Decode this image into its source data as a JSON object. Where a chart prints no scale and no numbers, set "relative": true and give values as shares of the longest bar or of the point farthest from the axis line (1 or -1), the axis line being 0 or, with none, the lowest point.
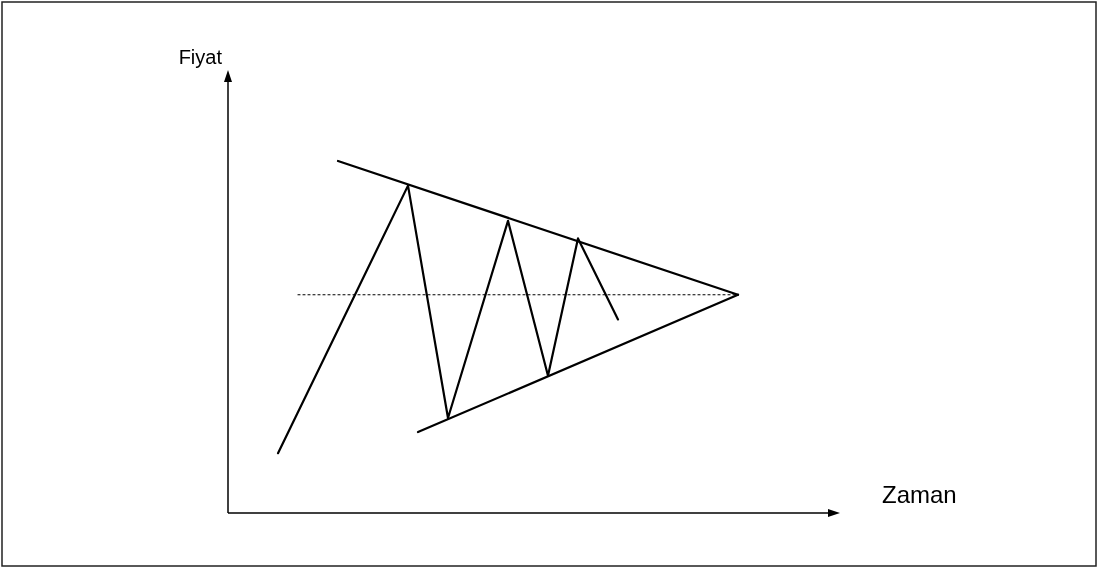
{
  "chart_data": {
    "type": "line",
    "relative": true,
    "ylabel": "Fiyat",
    "xlabel": "Zaman",
    "categories": [
      null,
      null,
      null,
      null,
      null,
      null,
      null,
      null,
      null,
      null,
      null,
      null,
      null,
      null,
      null,
      null,
      null,
      null,
      null,
      null,
      null,
      null,
      null,
      null,
      null,
      null,
      null,
      null,
      null,
      null,
      null,
      null,
      null,
      null,
      null,
      null,
      null,
      null,
      null,
      null,
      null,
      null,
      null,
      null,
      null,
      null,
      null,
      null,
      null,
      null,
      null,
      null,
      null,
      null,
      null,
      null,
      null,
      null,
      null,
      null,
      null
    ],
    "series": [
      {
        "color": "#000000",
        "line_style": "solid",
        "values": [
          null,
          null,
          null,
          null,
          null,
          0.17,
          null,
          null,
          null,
          null,
          null,
          null,
          null,
          null,
          null,
          null,
          null,
          null,
          0.93,
          null,
          null,
          null,
          0.27,
          null,
          null,
          null,
          null,
          null,
          0.83,
          null,
          null,
          null,
          0.39,
          null,
          null,
          0.78,
          null,
          null,
          null,
          0.55,
          null,
          null,
          null,
          null,
          null,
          null,
          null,
          null,
          null,
          null,
          null,
          null,
          null,
          null,
          null,
          null,
          null,
          null,
          null,
          null,
          null
        ]
      },
      {
        "color": "#000000",
        "line_style": "solid",
        "values": [
          null,
          null,
          null,
          null,
          null,
          null,
          null,
          null,
          null,
          null,
          null,
          1,
          null,
          null,
          null,
          null,
          null,
          null,
          null,
          null,
          null,
          null,
          null,
          null,
          null,
          null,
          null,
          null,
          null,
          null,
          null,
          null,
          null,
          null,
          null,
          null,
          null,
          null,
          null,
          null,
          null,
          null,
          null,
          null,
          null,
          null,
          null,
          null,
          null,
          null,
          null,
          0.62,
          null,
          null,
          null,
          null,
          null,
          null,
          null,
          null,
          null
        ]
      },
      {
        "color": "#000000",
        "line_style": "solid",
        "values": [
          null,
          null,
          null,
          null,
          null,
          null,
          null,
          null,
          null,
          null,
          null,
          null,
          null,
          null,
          null,
          null,
          null,
          null,
          null,
          0.23,
          null,
          null,
          null,
          null,
          null,
          null,
          null,
          null,
          null,
          null,
          null,
          null,
          null,
          null,
          null,
          null,
          null,
          null,
          null,
          null,
          null,
          null,
          null,
          null,
          null,
          null,
          null,
          null,
          null,
          null,
          null,
          0.62,
          null,
          null,
          null,
          null,
          null,
          null,
          null,
          null,
          null
        ]
      },
      {
        "color": "#000000",
        "line_style": "dotted",
        "values": [
          null,
          null,
          null,
          null,
          null,
          null,
          null,
          0.62,
          null,
          null,
          null,
          null,
          null,
          null,
          null,
          null,
          null,
          null,
          null,
          null,
          null,
          null,
          null,
          null,
          null,
          null,
          null,
          null,
          null,
          null,
          null,
          null,
          null,
          null,
          null,
          null,
          null,
          null,
          null,
          null,
          null,
          null,
          null,
          null,
          null,
          null,
          null,
          null,
          null,
          null,
          null,
          0.62,
          null,
          null,
          null,
          null,
          null,
          null,
          null,
          null,
          null
        ]
      }
    ]
  }
}
